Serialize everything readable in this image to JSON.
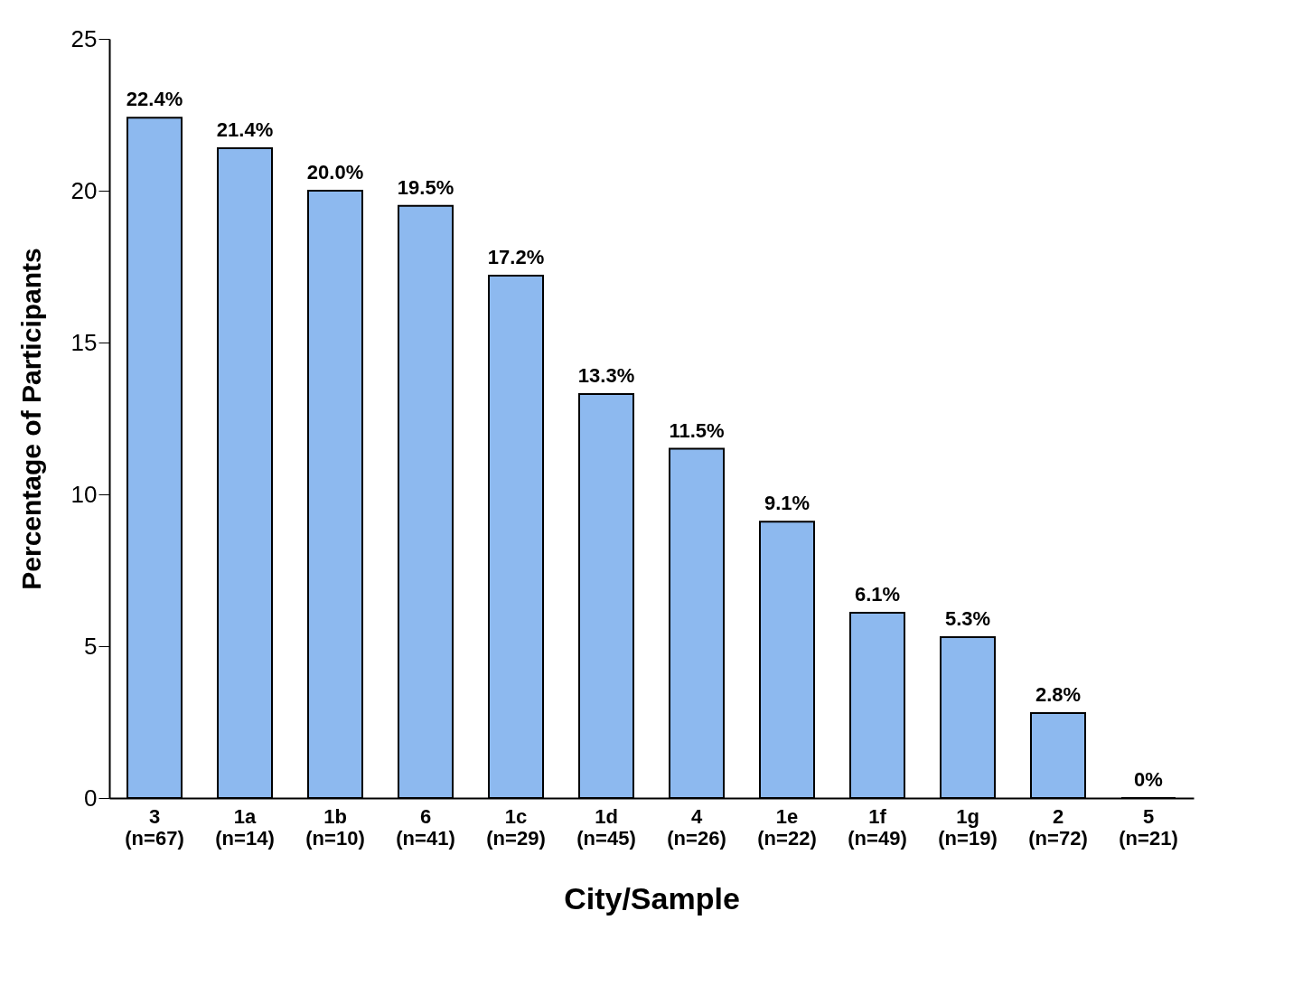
{
  "chart_data": {
    "type": "bar",
    "xlabel": "City/Sample",
    "ylabel": "Percentage of Participants",
    "categories": [
      "3\n(n=67)",
      "1a\n(n=14)",
      "1b\n(n=10)",
      "6\n(n=41)",
      "1c\n(n=29)",
      "1d\n(n=45)",
      "4\n(n=26)",
      "1e\n(n=22)",
      "1f\n(n=49)",
      "1g\n(n=19)",
      "2\n(n=72)",
      "5\n(n=21)"
    ],
    "values": [
      22.4,
      21.4,
      20.0,
      19.5,
      17.2,
      13.3,
      11.5,
      9.1,
      6.1,
      5.3,
      2.8,
      0
    ],
    "value_labels": [
      "22.4%",
      "21.4%",
      "20.0%",
      "19.5%",
      "17.2%",
      "13.3%",
      "11.5%",
      "9.1%",
      "6.1%",
      "5.3%",
      "2.8%",
      "0%"
    ],
    "color": "#8db9ef",
    "ylim": [
      0,
      25
    ],
    "yticks": [
      0,
      5,
      10,
      15,
      20,
      25
    ],
    "grid": false
  }
}
